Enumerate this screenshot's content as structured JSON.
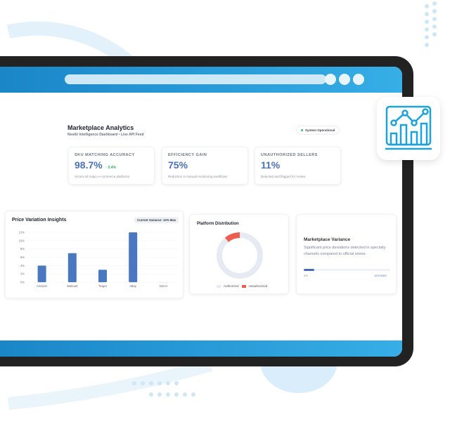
{
  "header": {
    "title": "Marketplace Analytics",
    "subtitle": "Nestlé Intelligence Dashboard • Live API Feed",
    "status": "System Operational",
    "status_color": "#34c07a"
  },
  "kpis": [
    {
      "label": "SKU MATCHING ACCURACY",
      "value": "98.7%",
      "delta": "↑ 0.4%",
      "note": "Across all major e-commerce platforms"
    },
    {
      "label": "EFFICIENCY GAIN",
      "value": "75%",
      "note": "Reduction in manual monitoring workflows"
    },
    {
      "label": "UNAUTHORIZED SELLERS",
      "value": "11%",
      "note": "Detected and flagged for review"
    }
  ],
  "price_chart": {
    "title": "Price Variation Insights",
    "badge": "Current Variance: 12% Max"
  },
  "chart_data": {
    "type": "bar",
    "categories": [
      "Amazon",
      "Walmart",
      "Target",
      "eBay",
      "Direct"
    ],
    "values": [
      4,
      7,
      3,
      12,
      0
    ],
    "ylim": [
      0,
      12
    ],
    "yticks": [
      "0%",
      "2%",
      "4%",
      "6%",
      "8%",
      "10%",
      "12%"
    ],
    "color": "#4a78c0",
    "grid": true
  },
  "distribution": {
    "title": "Platform Distribution",
    "legend": [
      "Authorized",
      "Unauthorized"
    ],
    "authorized_pct": 89,
    "unauthorized_pct": 11,
    "colors": [
      "#e6ebf3",
      "#ef5d50"
    ]
  },
  "variance": {
    "title": "Marketplace Variance",
    "text": "Significant price deviations detected in specialty channels compared to official stores.",
    "min_label": "0%",
    "max_label": "12% MAX",
    "progress_pct": 12
  },
  "icons": {
    "tile": "analytics-chart-icon"
  }
}
